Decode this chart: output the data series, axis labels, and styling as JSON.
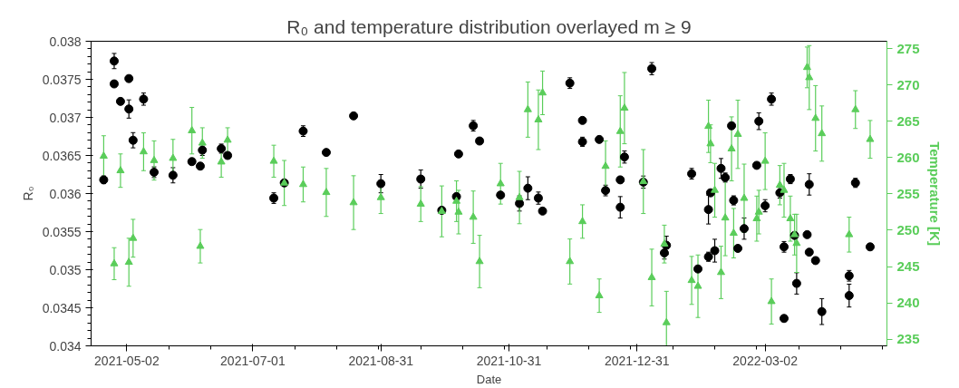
{
  "chart_data": {
    "type": "scatter",
    "title": "R₀ and temperature distribution overlayed m ≥ 9",
    "xlabel": "Date",
    "ylabel": "R₀",
    "y2label": "Temperature [K]",
    "xlim": [
      "2021-04-15",
      "2022-04-29"
    ],
    "xticks": [
      "2021-05-02",
      "2021-07-01",
      "2021-08-31",
      "2021-10-31",
      "2021-12-31",
      "2022-03-02"
    ],
    "ylim": [
      0.034,
      0.038
    ],
    "yticks": [
      0.034,
      0.0345,
      0.035,
      0.0355,
      0.036,
      0.0365,
      0.037,
      0.0375,
      0.038
    ],
    "y2lim": [
      234.1,
      276.0
    ],
    "y2ticks": [
      235,
      240,
      245,
      250,
      255,
      260,
      265,
      270,
      275
    ],
    "grid": false,
    "series": [
      {
        "color": "#000000",
        "marker": "circle",
        "x": [
          "2021-04-21",
          "2021-04-26",
          "2021-04-26",
          "2021-04-29",
          "2021-05-03",
          "2021-05-03",
          "2021-05-05",
          "2021-05-10",
          "2021-05-15",
          "2021-05-24",
          "2021-06-02",
          "2021-06-06",
          "2021-06-07",
          "2021-06-16",
          "2021-06-19",
          "2021-07-11",
          "2021-07-16",
          "2021-07-25",
          "2021-08-05",
          "2021-08-18",
          "2021-08-31",
          "2021-09-19",
          "2021-09-29",
          "2021-10-06",
          "2021-10-07",
          "2021-10-14",
          "2021-10-17",
          "2021-10-27",
          "2021-11-05",
          "2021-11-09",
          "2021-11-14",
          "2021-11-16",
          "2021-11-29",
          "2021-12-05",
          "2021-12-05",
          "2021-12-13",
          "2021-12-16",
          "2021-12-23",
          "2021-12-23",
          "2021-12-25",
          "2022-01-03",
          "2022-01-07",
          "2022-01-13",
          "2022-01-14",
          "2022-01-26",
          "2022-01-29",
          "2022-02-03",
          "2022-02-03",
          "2022-02-04",
          "2022-02-06",
          "2022-02-09",
          "2022-02-11",
          "2022-02-14",
          "2022-02-15",
          "2022-02-17",
          "2022-02-20",
          "2022-02-26",
          "2022-02-27",
          "2022-03-02",
          "2022-03-05",
          "2022-03-09",
          "2022-03-11",
          "2022-03-11",
          "2022-03-14",
          "2022-03-16",
          "2022-03-17",
          "2022-03-22",
          "2022-03-23",
          "2022-03-23",
          "2022-03-26",
          "2022-03-29",
          "2022-04-11",
          "2022-04-11",
          "2022-04-14",
          "2022-04-21"
        ],
        "values": [
          0.03618,
          0.03774,
          0.03744,
          0.03721,
          0.03751,
          0.03711,
          0.0367,
          0.03724,
          0.03628,
          0.03624,
          0.03642,
          0.03636,
          0.03657,
          0.03659,
          0.0365,
          0.03594,
          0.03614,
          0.03682,
          0.03654,
          0.03702,
          0.03613,
          0.03619,
          0.03578,
          0.03596,
          0.03652,
          0.03689,
          0.03669,
          0.03598,
          0.03587,
          0.03607,
          0.03594,
          0.03577,
          0.03745,
          0.03696,
          0.03668,
          0.03671,
          0.03604,
          0.03618,
          0.03582,
          0.03648,
          0.03615,
          0.03764,
          0.03522,
          0.03532,
          0.03626,
          0.03501,
          0.03517,
          0.03579,
          0.03601,
          0.03525,
          0.03633,
          0.03621,
          0.03689,
          0.03591,
          0.03528,
          0.03554,
          0.03637,
          0.03695,
          0.03584,
          0.03724,
          0.03601,
          0.0353,
          0.03436,
          0.03619,
          0.03545,
          0.03482,
          0.03546,
          0.03612,
          0.03523,
          0.03512,
          0.03445,
          0.03492,
          0.03466,
          0.03614,
          0.0353
        ],
        "errors": [
          5e-05,
          0.0001,
          3e-05,
          3e-05,
          4e-05,
          0.00012,
          0.0001,
          8e-05,
          7e-05,
          0.0001,
          4e-05,
          3e-05,
          7e-05,
          6e-05,
          3e-05,
          7e-05,
          4e-05,
          7e-05,
          3e-05,
          3e-05,
          0.00012,
          0.00012,
          3e-05,
          4e-05,
          3e-05,
          7e-05,
          3e-05,
          4e-05,
          0.0001,
          0.00015,
          8e-05,
          3e-05,
          7e-05,
          3e-05,
          6e-05,
          3e-05,
          7e-05,
          4e-05,
          0.00014,
          8e-05,
          8e-05,
          8e-05,
          8e-05,
          0.00012,
          7e-05,
          3e-05,
          6e-05,
          0.00019,
          3e-05,
          0.00015,
          0.00013,
          6e-05,
          4e-05,
          6e-05,
          3e-05,
          0.00014,
          3e-05,
          0.00011,
          8e-05,
          8e-05,
          7e-05,
          7e-05,
          4e-05,
          6e-05,
          4e-05,
          0.00014,
          3e-05,
          0.00014,
          3e-05,
          4e-05,
          0.00017,
          7e-05,
          0.00015,
          6e-05,
          4e-05
        ]
      },
      {
        "color": "#5acd5a",
        "marker": "triangle",
        "axis": "y2",
        "x": [
          "2021-04-21",
          "2021-04-26",
          "2021-04-29",
          "2021-05-03",
          "2021-05-05",
          "2021-05-10",
          "2021-05-15",
          "2021-05-24",
          "2021-06-02",
          "2021-06-06",
          "2021-06-07",
          "2021-06-16",
          "2021-06-19",
          "2021-07-11",
          "2021-07-16",
          "2021-07-25",
          "2021-08-05",
          "2021-08-18",
          "2021-08-31",
          "2021-09-19",
          "2021-09-29",
          "2021-10-06",
          "2021-10-07",
          "2021-10-14",
          "2021-10-17",
          "2021-10-27",
          "2021-11-05",
          "2021-11-09",
          "2021-11-14",
          "2021-11-16",
          "2021-11-29",
          "2021-12-05",
          "2021-12-13",
          "2021-12-16",
          "2021-12-23",
          "2021-12-25",
          "2022-01-03",
          "2022-01-07",
          "2022-01-13",
          "2022-01-14",
          "2022-01-26",
          "2022-01-29",
          "2022-02-03",
          "2022-02-04",
          "2022-02-06",
          "2022-02-09",
          "2022-02-11",
          "2022-02-14",
          "2022-02-15",
          "2022-02-17",
          "2022-02-20",
          "2022-02-26",
          "2022-02-27",
          "2022-03-02",
          "2022-03-05",
          "2022-03-09",
          "2022-03-11",
          "2022-03-14",
          "2022-03-16",
          "2022-03-17",
          "2022-03-22",
          "2022-03-23",
          "2022-03-26",
          "2022-03-29",
          "2022-04-11",
          "2022-04-14",
          "2022-04-21"
        ],
        "values": [
          260.2,
          245.4,
          258.2,
          245.6,
          248.9,
          260.8,
          259.6,
          259.9,
          263.7,
          247.8,
          262.0,
          259.4,
          262.4,
          259.5,
          256.5,
          256.3,
          255.2,
          253.8,
          254.5,
          253.6,
          252.6,
          254.0,
          252.5,
          251.8,
          245.7,
          256.4,
          254.5,
          266.6,
          265.2,
          268.9,
          245.7,
          251.2,
          241.0,
          258.8,
          263.6,
          266.8,
          256.7,
          243.5,
          248.1,
          237.3,
          243.1,
          242.3,
          264.3,
          261.9,
          255.5,
          244.2,
          251.7,
          261.2,
          249.6,
          263.2,
          254.4,
          251.6,
          252.5,
          259.5,
          240.2,
          256.2,
          255.5,
          251.6,
          249.4,
          248.2,
          272.4,
          271.0,
          265.4,
          263.3,
          249.4,
          266.6,
          262.5
        ],
        "errors": [
          2.8,
          2.2,
          2.3,
          3.3,
          2.6,
          2.6,
          2.7,
          2.6,
          3.2,
          2.3,
          2.1,
          2.1,
          1.7,
          2.2,
          3.1,
          2.4,
          3.3,
          3.7,
          2.2,
          2.4,
          3.5,
          2.8,
          3.0,
          3.6,
          3.6,
          2.8,
          3.6,
          3.8,
          4.1,
          3.0,
          3.1,
          2.3,
          2.3,
          3.5,
          4.9,
          4.9,
          4.4,
          3.9,
          2.6,
          4.3,
          3.3,
          4.3,
          3.6,
          2.6,
          3.7,
          3.6,
          5.2,
          4.4,
          3.4,
          4.7,
          4.7,
          3.1,
          3.0,
          3.9,
          3.1,
          2.7,
          3.7,
          3.1,
          2.8,
          4.0,
          2.8,
          4.4,
          4.5,
          3.8,
          2.4,
          2.6,
          2.6
        ]
      }
    ]
  }
}
